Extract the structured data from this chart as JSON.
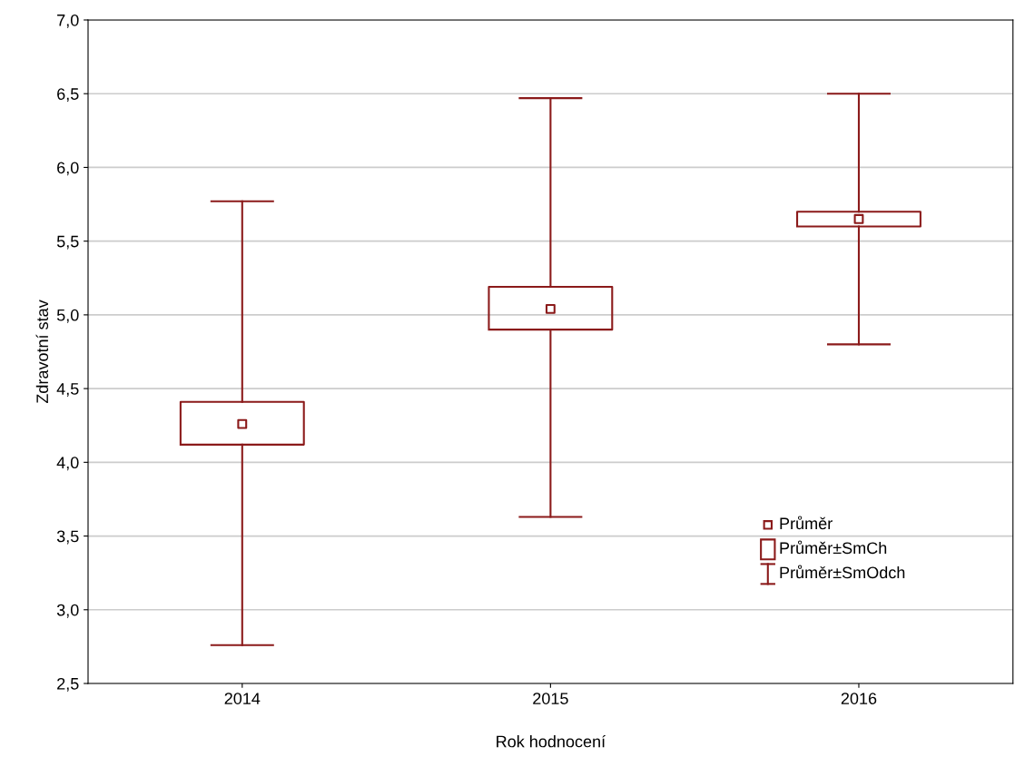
{
  "chart_data": {
    "type": "box",
    "xlabel": "Rok hodnocení",
    "ylabel": "Zdravotní stav",
    "categories": [
      "2014",
      "2015",
      "2016"
    ],
    "boxes": [
      {
        "low": 2.76,
        "q1": 4.12,
        "median": 4.26,
        "q3": 4.41,
        "high": 5.77
      },
      {
        "low": 3.63,
        "q1": 4.9,
        "median": 5.04,
        "q3": 5.19,
        "high": 6.47
      },
      {
        "low": 4.8,
        "q1": 5.6,
        "median": 5.65,
        "q3": 5.7,
        "high": 6.5
      }
    ],
    "color": "#8b1a1a",
    "ylim": [
      2.5,
      7.0
    ],
    "yticks": [
      {
        "value": 2.5,
        "label": "2,5"
      },
      {
        "value": 3.0,
        "label": "3,0"
      },
      {
        "value": 3.5,
        "label": "3,5"
      },
      {
        "value": 4.0,
        "label": "4,0"
      },
      {
        "value": 4.5,
        "label": "4,5"
      },
      {
        "value": 5.0,
        "label": "5,0"
      },
      {
        "value": 5.5,
        "label": "5,5"
      },
      {
        "value": 6.0,
        "label": "6,0"
      },
      {
        "value": 6.5,
        "label": "6,5"
      },
      {
        "value": 7.0,
        "label": "7,0"
      }
    ],
    "grid": "y",
    "annotations": [
      "Průměr",
      "Průměr±SmCh",
      "Průměr±SmOdch"
    ]
  }
}
